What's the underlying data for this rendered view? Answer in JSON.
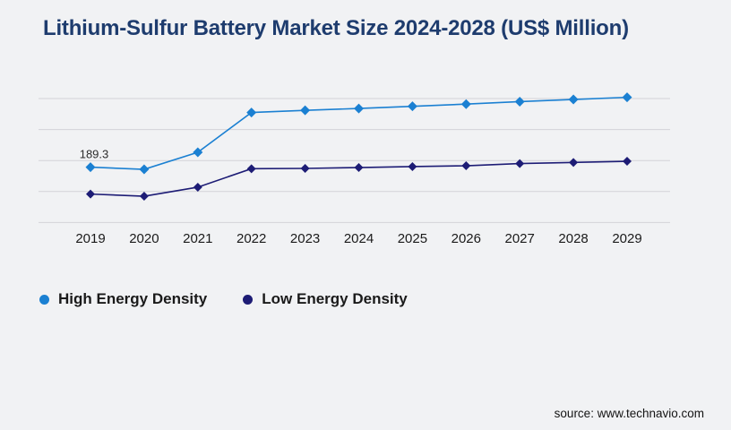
{
  "header": {
    "title": "Lithium-Sulfur Battery Market Size 2024-2028 (US$ Million)"
  },
  "chart_data": {
    "type": "line",
    "title": "Lithium-Sulfur Battery Market Size 2024-2028 (US$ Million)",
    "categories": [
      "2019",
      "2020",
      "2021",
      "2022",
      "2023",
      "2024",
      "2025",
      "2026",
      "2027",
      "2028",
      "2029"
    ],
    "series": [
      {
        "name": "High Energy Density",
        "color": "#1b80d2",
        "marker": "diamond",
        "values": [
          189.3,
          185.8,
          213.3,
          277.5,
          281.0,
          284.0,
          287.5,
          291.0,
          295.0,
          298.5,
          302.0
        ],
        "point_label": {
          "index": 0,
          "text": "189.3"
        }
      },
      {
        "name": "Low Energy Density",
        "color": "#1d1c75",
        "marker": "diamond",
        "values": [
          145.9,
          142.4,
          157.0,
          186.8,
          187.3,
          188.7,
          190.2,
          191.6,
          195.1,
          196.9,
          198.8
        ]
      }
    ],
    "xlabel": "",
    "ylabel": "",
    "ylim": [
      100,
      300
    ],
    "gridlines": [
      100,
      150,
      200,
      250,
      300
    ],
    "y_axis_labels_visible": false,
    "grid": "horizontal",
    "legend_position": "bottom-left"
  },
  "footer": {
    "source_label": "source: www.technavio.com"
  },
  "colors": {
    "background": "#f1f2f4",
    "title": "#1e3c6e",
    "gridline": "#d3d3d8",
    "tick_label": "#1a1a1a",
    "data_label": "#2b2b2b"
  }
}
